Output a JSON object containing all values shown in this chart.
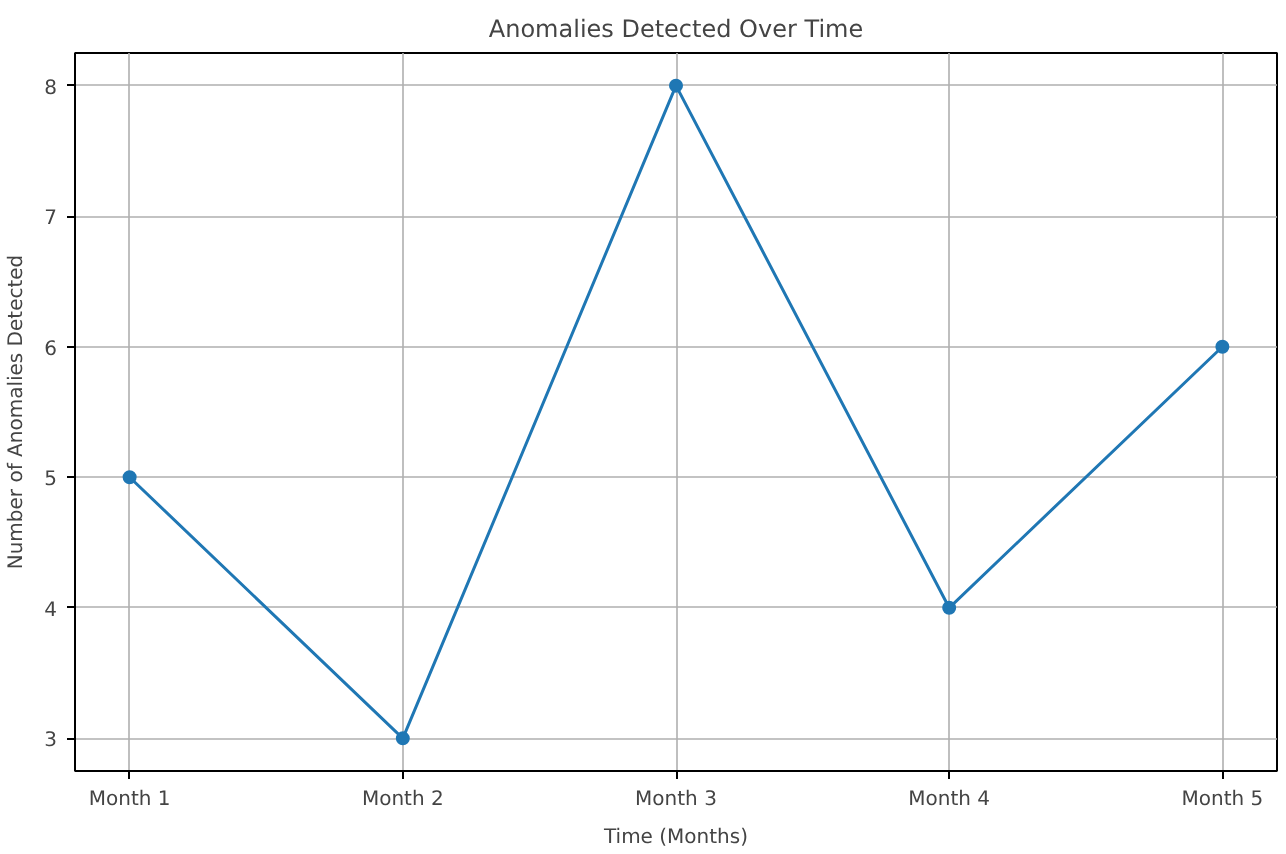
{
  "chart_data": {
    "type": "line",
    "title": "Anomalies Detected Over Time",
    "xlabel": "Time (Months)",
    "ylabel": "Number of Anomalies Detected",
    "categories": [
      "Month 1",
      "Month 2",
      "Month 3",
      "Month 4",
      "Month 5"
    ],
    "series": [
      {
        "color": "#1f77b4",
        "values": [
          5,
          3,
          8,
          4,
          6
        ]
      }
    ],
    "ylim": [
      2.75,
      8.25
    ],
    "yticks": [
      3,
      4,
      5,
      6,
      7,
      8
    ],
    "grid": true,
    "marker": "circle",
    "line_style": "solid"
  }
}
